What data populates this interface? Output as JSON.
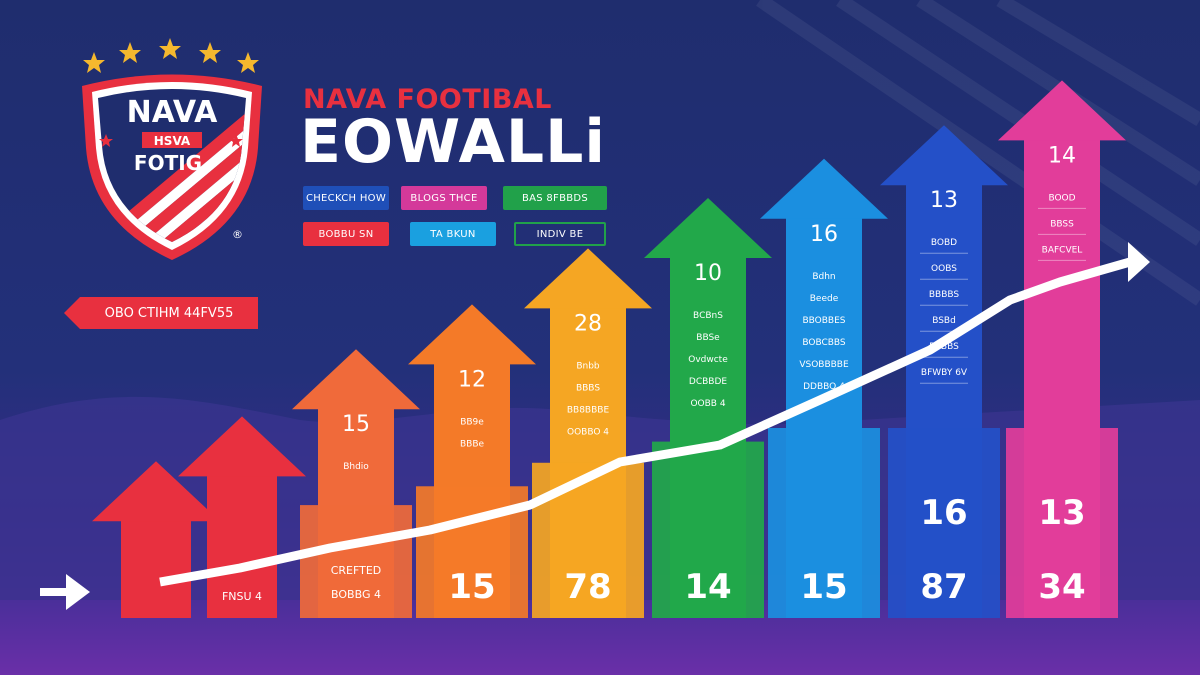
{
  "brand": {
    "crest_line1": "NAVA",
    "crest_line2": "HSVA",
    "crest_line3": "FOTIG",
    "registered_mark": "®",
    "title_top": "NAVA FOOTIBAL",
    "title_main": "EOWALLi"
  },
  "pills": [
    {
      "label": "CHECKCH HOW",
      "color": "#1f4fb8",
      "style": "filled"
    },
    {
      "label": "BLOGS THCE",
      "color": "#d4399a",
      "style": "filled"
    },
    {
      "label": "BAS 8FBBDS",
      "color": "#21a14a",
      "style": "filled"
    },
    {
      "label": "BOBBU SN",
      "color": "#e8303f",
      "style": "filled"
    },
    {
      "label": "TA BKUN",
      "color": "#1aa0e0",
      "style": "filled"
    },
    {
      "label": "INDIV BE",
      "color": "#21a14a",
      "style": "outline"
    }
  ],
  "tag": {
    "label": "OBO CTIHM 44FV55",
    "color": "#e8303f"
  },
  "bars": [
    {
      "name": "red-1",
      "color": "#e8303f",
      "top_value": "",
      "bottom_value": "",
      "small_text": [],
      "level": 0.28
    },
    {
      "name": "red-2",
      "color": "#e8303f",
      "top_value": "",
      "bottom_value": "FNSU 4",
      "small_text": [],
      "level": 0.36
    },
    {
      "name": "orange-1",
      "color": "#f06a3a",
      "top_value": "15",
      "bottom_value": "CREFTED",
      "bottom_value2": "BOBBG 4",
      "small_text": [
        "Bhdio"
      ],
      "level": 0.48
    },
    {
      "name": "orange-2",
      "color": "#f47a28",
      "top_value": "12",
      "bottom_value": "15",
      "small_text": [
        "BB9e",
        "BBBe"
      ],
      "level": 0.56
    },
    {
      "name": "yellow",
      "color": "#f5a623",
      "top_value": "28",
      "bottom_value": "78",
      "small_text": [
        "Bnbb",
        "BBBS",
        "BB8BBBE",
        "OOBBO 4"
      ],
      "level": 0.66
    },
    {
      "name": "green",
      "color": "#22a84a",
      "top_value": "10",
      "bottom_value": "14",
      "small_text": [
        "BCBnS",
        "BBSe",
        "Ovdwcte",
        "DCBBDE",
        "OOBB 4"
      ],
      "level": 0.75
    },
    {
      "name": "blue-light",
      "color": "#1b8fe0",
      "top_value": "16",
      "bottom_value": "15",
      "small_text": [
        "Bdhn",
        "Beede",
        "BBOBBES",
        "BOBCBBS",
        "VSOBBBBE",
        "DDBBO 4"
      ],
      "level": 0.82
    },
    {
      "name": "blue-dark",
      "color": "#2450c8",
      "top_value": "13",
      "mid_value": "16",
      "bottom_value": "87",
      "small_text": [
        "BOBD",
        "OOBS",
        "BBBBS",
        "BSBd",
        "BSBBS",
        "BFWBY 6V"
      ],
      "level": 0.88
    },
    {
      "name": "pink",
      "color": "#e23d9a",
      "top_value": "14",
      "mid_value": "13",
      "bottom_value": "34",
      "small_text": [
        "BOOD",
        "BBSS",
        "BAFCVEL"
      ],
      "level": 0.96
    }
  ],
  "colors": {
    "background": "#23307a",
    "trend_line": "#ffffff",
    "accent_red": "#e8303f",
    "star": "#f5b82e"
  }
}
